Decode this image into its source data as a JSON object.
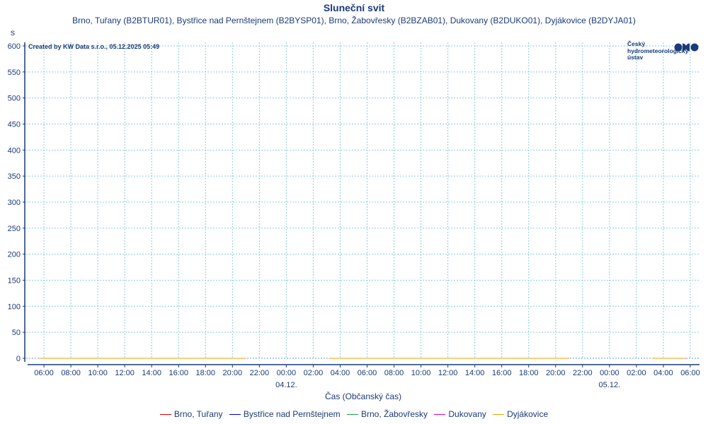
{
  "chart_data": {
    "type": "line",
    "title": "Sluneční svit",
    "subtitle": "Brno, Tuřany (B2BTUR01), Bystřice nad Pernštejnem (B2BYSP01), Brno, Žabovřesky (B2BZAB01), Dukovany (B2DUKO01), Dyjákovice (B2DYJA01)",
    "ylabel": "s",
    "xlabel": "Čas (Občanský čas)",
    "ylim": [
      0,
      600
    ],
    "yticks": [
      0,
      50,
      100,
      150,
      200,
      250,
      300,
      350,
      400,
      450,
      500,
      550,
      600
    ],
    "xlim": [
      "2025-12-03 04:41",
      "2025-12-05 06:38"
    ],
    "xtick_labels": [
      "06:00",
      "08:00",
      "10:00",
      "12:00",
      "14:00",
      "16:00",
      "18:00",
      "20:00",
      "22:00",
      "00:00",
      "02:00",
      "04:00",
      "06:00",
      "08:00",
      "10:00",
      "12:00",
      "14:00",
      "16:00",
      "18:00",
      "20:00",
      "22:00",
      "00:00",
      "02:00",
      "04:00",
      "06:00"
    ],
    "date_labels": [
      {
        "label": "04.12.",
        "at": "2025-12-04 00:00"
      },
      {
        "label": "05.12.",
        "at": "2025-12-05 00:00"
      }
    ],
    "grid": true,
    "legend_position": "bottom",
    "series": [
      {
        "name": "Brno, Tuřany",
        "color": "#e00000"
      },
      {
        "name": "Bystřice nad Pernštejnem",
        "color": "#0000d0"
      },
      {
        "name": "Brno, Žabovřesky",
        "color": "#20a040"
      },
      {
        "name": "Dukovany",
        "color": "#d000d0"
      },
      {
        "name": "Dyjákovice",
        "color": "#f0a000"
      }
    ],
    "segments": [
      {
        "start": "2025-12-03 05:40",
        "end": "2025-12-03 21:00",
        "value": 0
      },
      {
        "start": "2025-12-04 03:10",
        "end": "2025-12-04 21:00",
        "value": 0
      },
      {
        "start": "2025-12-05 03:10",
        "end": "2025-12-05 05:40",
        "value": 0
      }
    ],
    "annotation": "Created by KW Data s.r.o., 05.12.2025 05:49"
  },
  "logo": {
    "lines": [
      "Český",
      "hydrometeorologický",
      "ústav"
    ],
    "color": "#1a3a7a"
  }
}
